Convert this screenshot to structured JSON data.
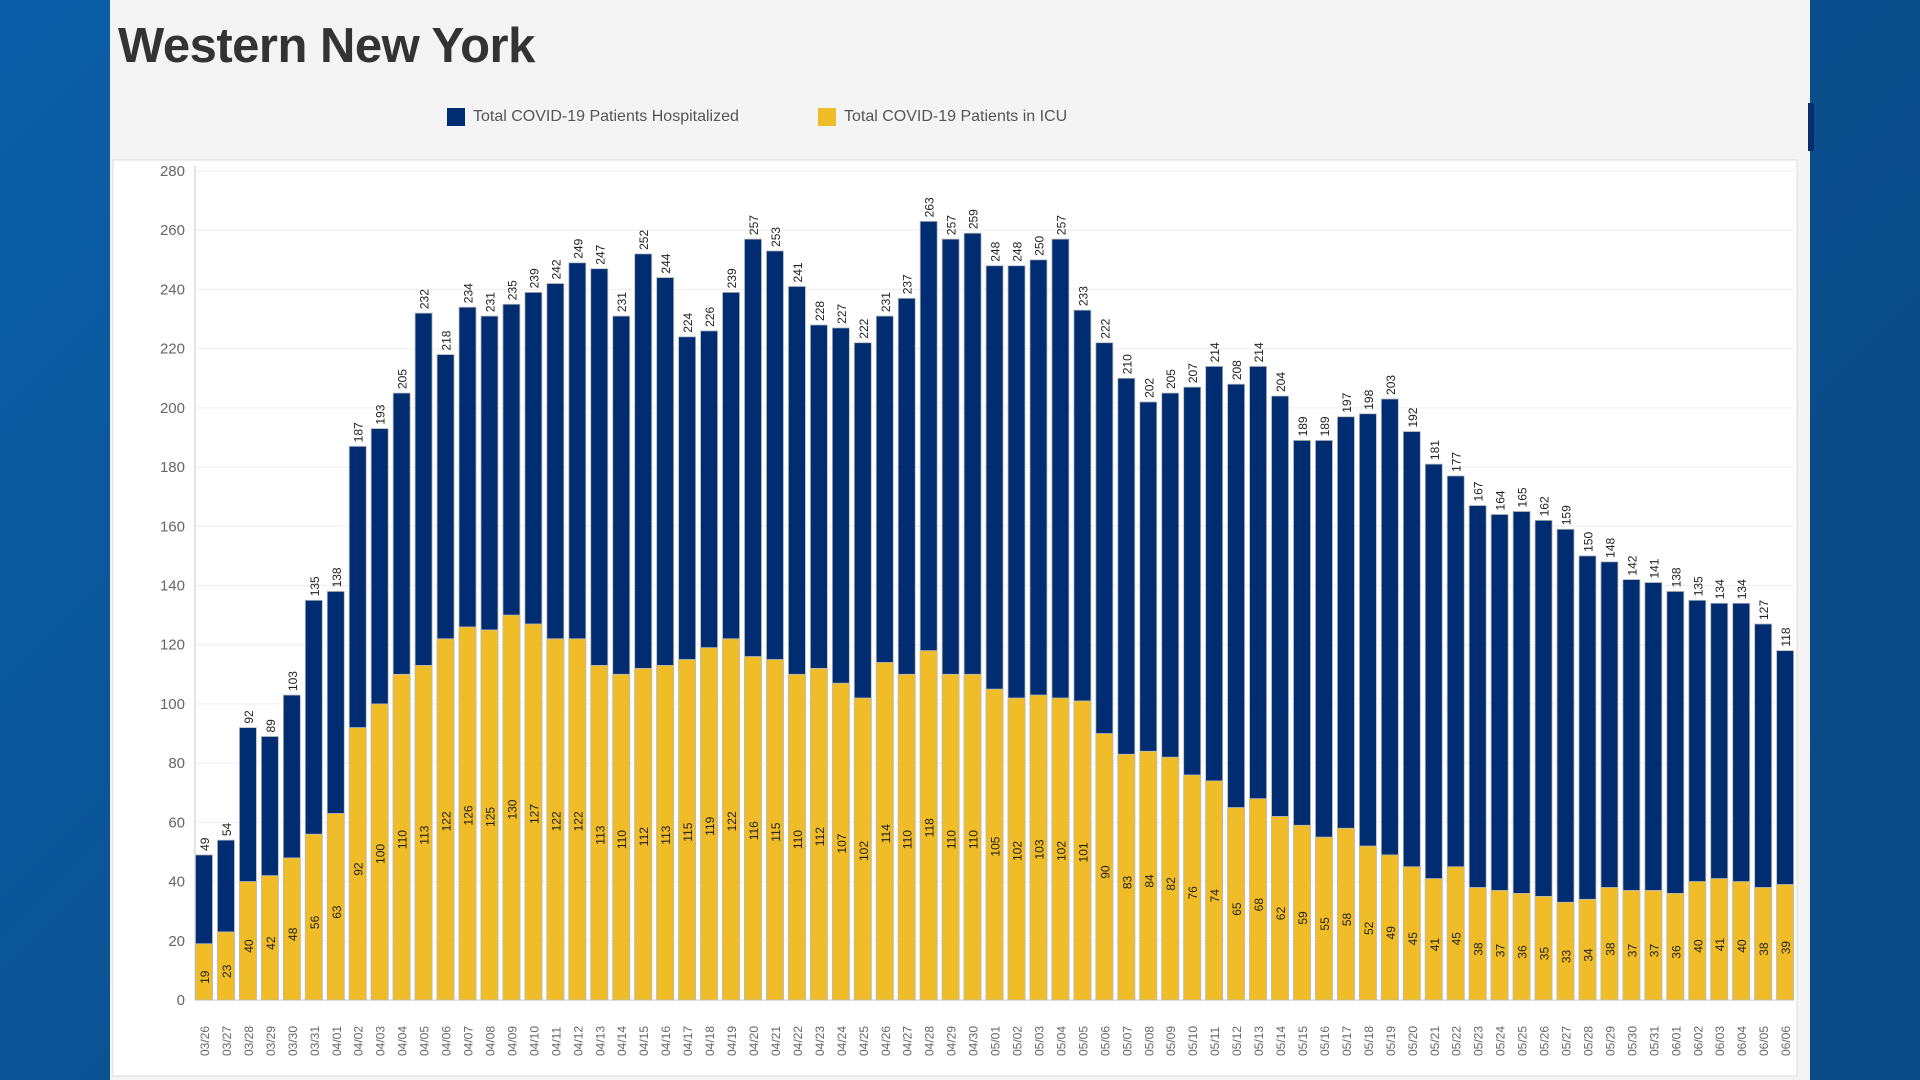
{
  "colors": {
    "hospitalized": "#002d72",
    "icu": "#f0bc27"
  },
  "chart_data": {
    "type": "bar",
    "title": "Western New York",
    "xlabel": "",
    "ylabel": "",
    "ylim": [
      0,
      280
    ],
    "yticks": [
      0,
      20,
      40,
      60,
      80,
      100,
      120,
      140,
      160,
      180,
      200,
      220,
      240,
      260,
      280
    ],
    "grid": true,
    "legend_position": "top",
    "categories": [
      "03/26",
      "03/27",
      "03/28",
      "03/29",
      "03/30",
      "03/31",
      "04/01",
      "04/02",
      "04/03",
      "04/04",
      "04/05",
      "04/06",
      "04/07",
      "04/08",
      "04/09",
      "04/10",
      "04/11",
      "04/12",
      "04/13",
      "04/14",
      "04/15",
      "04/16",
      "04/17",
      "04/18",
      "04/19",
      "04/20",
      "04/21",
      "04/22",
      "04/23",
      "04/24",
      "04/25",
      "04/26",
      "04/27",
      "04/28",
      "04/29",
      "04/30",
      "05/01",
      "05/02",
      "05/03",
      "05/04",
      "05/05",
      "05/06",
      "05/07",
      "05/08",
      "05/09",
      "05/10",
      "05/11",
      "05/12",
      "05/13",
      "05/14",
      "05/15",
      "05/16",
      "05/17",
      "05/18",
      "05/19",
      "05/20",
      "05/21",
      "05/22",
      "05/23",
      "05/24",
      "05/25",
      "05/26",
      "05/27",
      "05/28",
      "05/29",
      "05/30",
      "05/31",
      "06/01",
      "06/02",
      "06/03",
      "06/04",
      "06/05",
      "06/06"
    ],
    "series": [
      {
        "name": "Total COVID-19 Patients Hospitalized",
        "values": [
          49,
          54,
          92,
          89,
          103,
          135,
          138,
          187,
          193,
          205,
          232,
          218,
          234,
          231,
          235,
          239,
          242,
          249,
          247,
          231,
          252,
          244,
          224,
          226,
          239,
          257,
          253,
          241,
          228,
          227,
          222,
          231,
          237,
          263,
          257,
          259,
          248,
          248,
          250,
          257,
          233,
          222,
          210,
          202,
          205,
          207,
          214,
          208,
          214,
          204,
          189,
          189,
          197,
          198,
          203,
          192,
          181,
          177,
          167,
          164,
          165,
          162,
          159,
          150,
          148,
          142,
          141,
          138,
          135,
          134,
          134,
          127,
          118
        ]
      },
      {
        "name": "Total COVID-19 Patients in ICU",
        "values": [
          19,
          23,
          40,
          42,
          48,
          56,
          63,
          92,
          100,
          110,
          113,
          122,
          126,
          125,
          130,
          127,
          122,
          122,
          113,
          110,
          112,
          113,
          115,
          119,
          122,
          116,
          115,
          110,
          112,
          107,
          102,
          114,
          110,
          118,
          110,
          110,
          105,
          102,
          103,
          102,
          101,
          90,
          83,
          84,
          82,
          76,
          74,
          65,
          68,
          62,
          59,
          55,
          58,
          52,
          49,
          45,
          41,
          45,
          38,
          37,
          36,
          35,
          33,
          34,
          38,
          37,
          37,
          36,
          40,
          41,
          40,
          38,
          39
        ]
      }
    ]
  }
}
